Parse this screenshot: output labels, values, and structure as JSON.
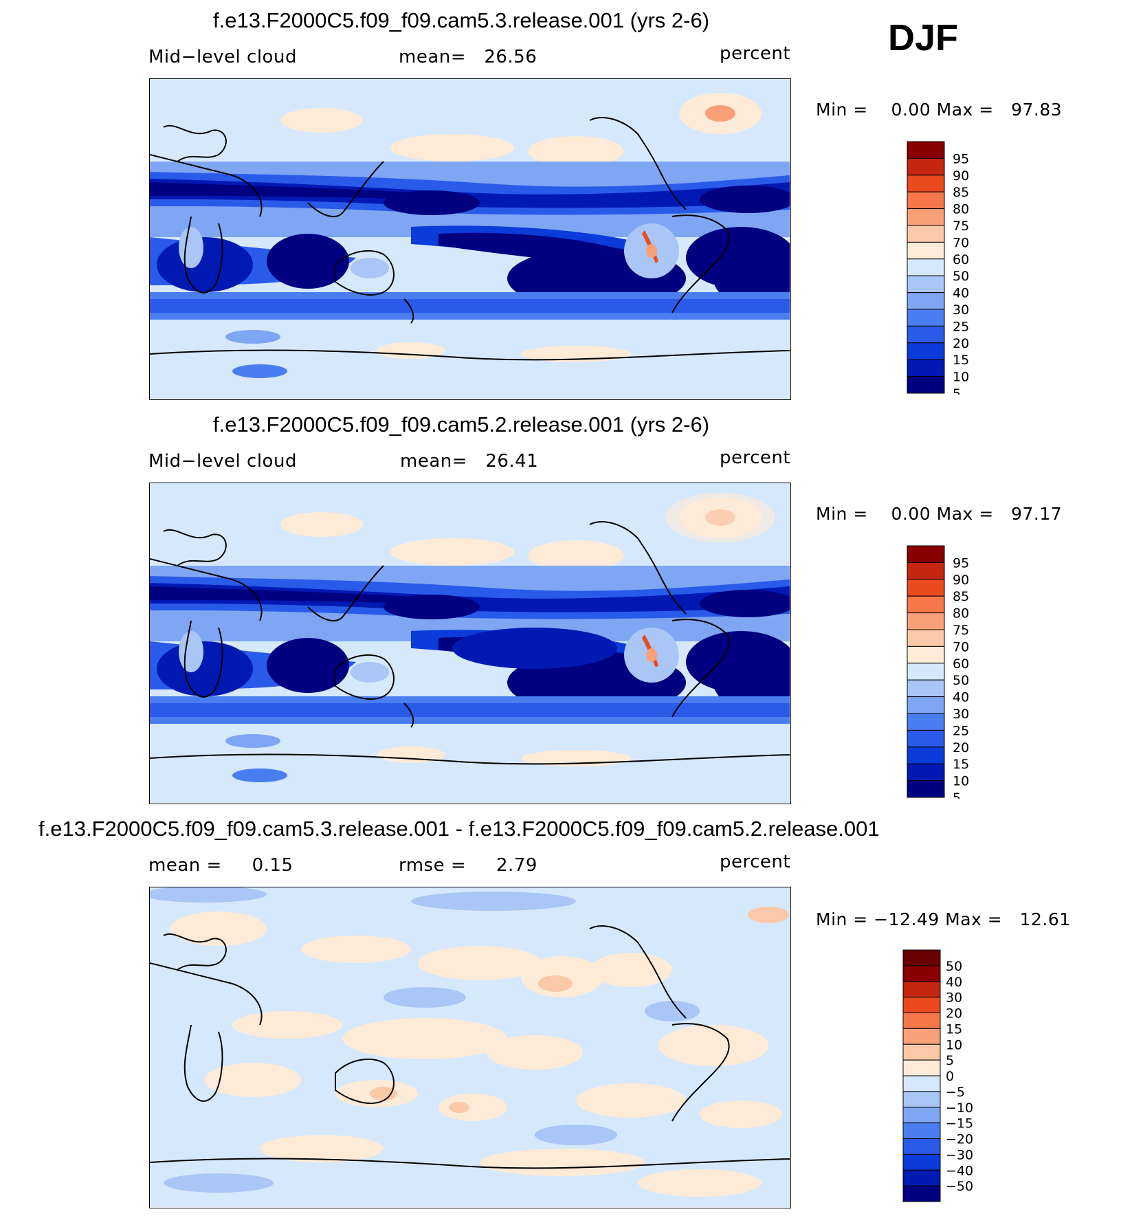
{
  "season": "DJF",
  "panels": [
    {
      "title": "f.e13.F2000C5.f09_f09.cam5.3.release.001 (yrs 2-6)",
      "left_label": "Mid−level cloud",
      "center_label": "mean=   26.56",
      "units": "percent",
      "minmax": "Min =    0.00 Max =   97.83",
      "colorbar_labels": [
        "95",
        "90",
        "85",
        "80",
        "75",
        "70",
        "60",
        "50",
        "40",
        "30",
        "25",
        "20",
        "15",
        "10",
        "5"
      ]
    },
    {
      "title": "f.e13.F2000C5.f09_f09.cam5.2.release.001 (yrs 2-6)",
      "left_label": "Mid−level cloud",
      "center_label": "mean=   26.41",
      "units": "percent",
      "minmax": "Min =    0.00 Max =   97.17",
      "colorbar_labels": [
        "95",
        "90",
        "85",
        "80",
        "75",
        "70",
        "60",
        "50",
        "40",
        "30",
        "25",
        "20",
        "15",
        "10",
        "5"
      ]
    },
    {
      "title": "f.e13.F2000C5.f09_f09.cam5.3.release.001 - f.e13.F2000C5.f09_f09.cam5.2.release.001",
      "left_label": "mean =     0.15",
      "center_label": "rmse =     2.79",
      "units": "percent",
      "minmax": "Min = −12.49 Max =   12.61",
      "colorbar_labels": [
        "50",
        "40",
        "30",
        "20",
        "15",
        "10",
        "5",
        "0",
        "−5",
        "−10",
        "−15",
        "−20",
        "−30",
        "−40",
        "−50"
      ]
    }
  ],
  "colors": {
    "abs_scale": [
      "#000080",
      "#0019b3",
      "#0b3bd8",
      "#2a5ae8",
      "#4a7ef0",
      "#7fa6f3",
      "#aac6f6",
      "#d6e8fb",
      "#fdebd8",
      "#fbc9a8",
      "#f9a078",
      "#f5774a",
      "#ea4a1d",
      "#c4260f",
      "#8a0000"
    ],
    "diff_scale": [
      "#000080",
      "#0019b3",
      "#0b3bd8",
      "#2a5ae8",
      "#4a7ef0",
      "#7fa6f3",
      "#aac6f6",
      "#d6e8fb",
      "#fdebd8",
      "#fbc9a8",
      "#f9a078",
      "#f5774a",
      "#ea4a1d",
      "#c4260f",
      "#8a0000",
      "#6a0000"
    ]
  }
}
